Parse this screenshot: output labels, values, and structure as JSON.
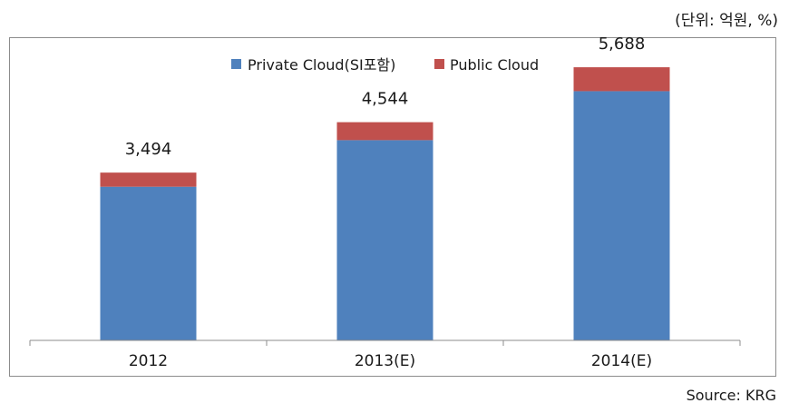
{
  "unit_label": "(단위: 억원, %)",
  "source_label": "Source: KRG",
  "colors": {
    "private": "#4f81bd",
    "public": "#c0504d",
    "axis": "#8c8c8c"
  },
  "chart_data": {
    "type": "bar",
    "stacked": true,
    "categories": [
      "2012",
      "2013(E)",
      "2014(E)"
    ],
    "series": [
      {
        "name": "Private Cloud(SI포함)",
        "values": [
          3200,
          4170,
          5190
        ]
      },
      {
        "name": "Public Cloud",
        "values": [
          294,
          374,
          498
        ]
      }
    ],
    "totals": [
      "3,494",
      "4,544",
      "5,688"
    ],
    "ylim": [
      0,
      6200
    ],
    "grid": false,
    "legend": "top-center"
  }
}
